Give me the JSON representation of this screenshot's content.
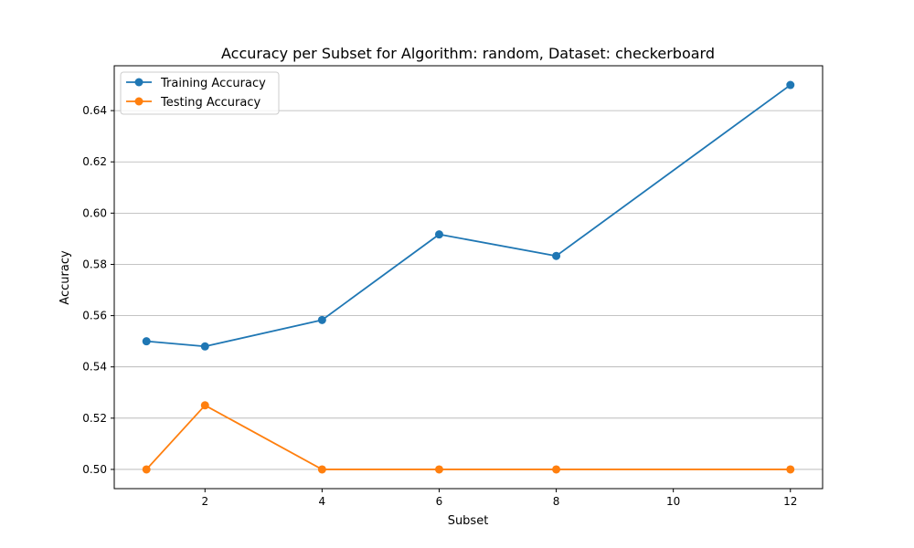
{
  "chart_data": {
    "type": "line",
    "title": "Accuracy per Subset for Algorithm: random, Dataset: checkerboard",
    "xlabel": "Subset",
    "ylabel": "Accuracy",
    "x": [
      1,
      2,
      4,
      6,
      8,
      12
    ],
    "xticks": [
      2,
      4,
      6,
      8,
      10,
      12
    ],
    "yticks": [
      0.5,
      0.52,
      0.54,
      0.56,
      0.58,
      0.6,
      0.62,
      0.64
    ],
    "xlim": [
      0.45,
      12.55
    ],
    "ylim": [
      0.4925,
      0.6575
    ],
    "grid": "y-major",
    "legend": "upper left",
    "series": [
      {
        "name": "Training Accuracy",
        "color": "#1f77b4",
        "marker": "circle",
        "values": [
          0.55,
          0.548,
          0.5583,
          0.5917,
          0.5833,
          0.65
        ]
      },
      {
        "name": "Testing Accuracy",
        "color": "#ff7f0e",
        "marker": "circle",
        "values": [
          0.5,
          0.525,
          0.5,
          0.5,
          0.5,
          0.5
        ]
      }
    ]
  }
}
